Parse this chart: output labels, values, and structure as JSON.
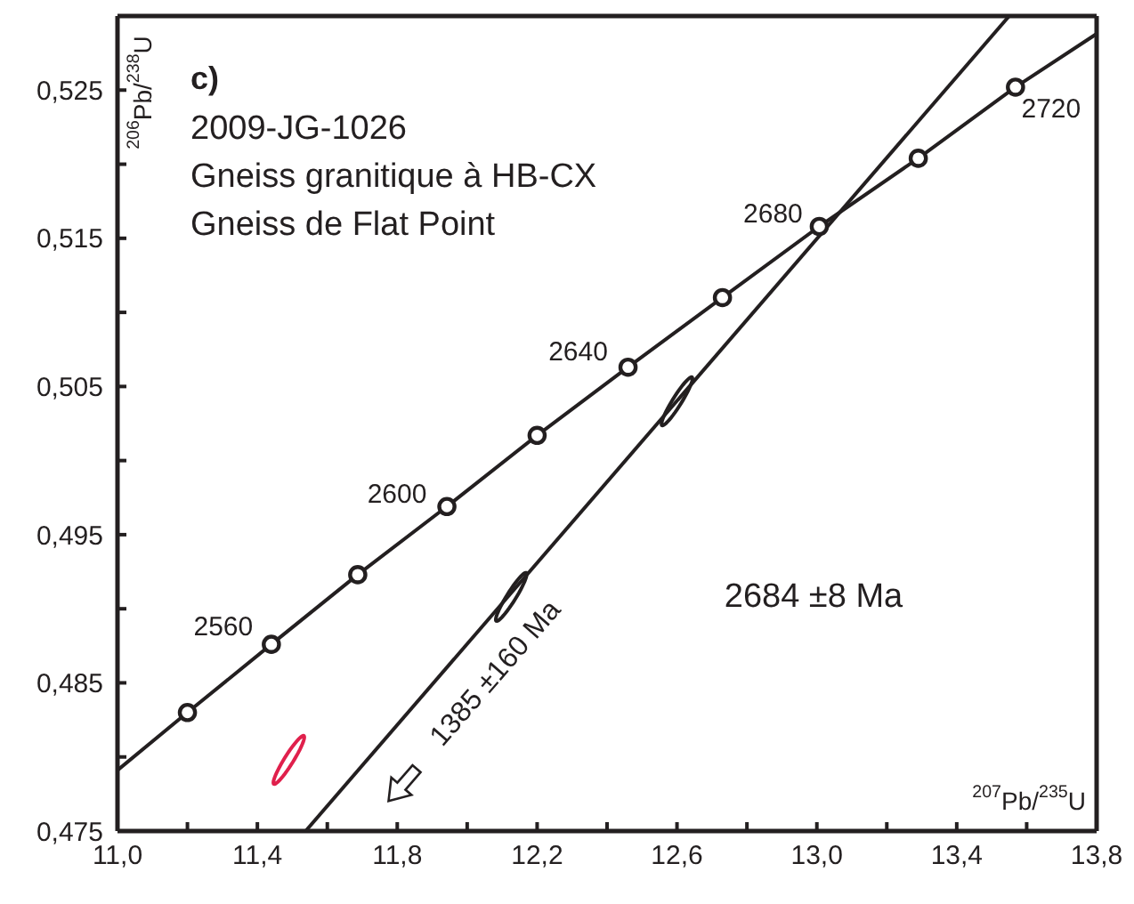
{
  "chart_data": {
    "type": "line",
    "title": "c)",
    "subtitle": "2009-JG-1026",
    "xlabel": "$^{207}$Pb/$^{235}$U",
    "ylabel": "$^{206}$Pb/$^{238}$U",
    "xlim": [
      11.0,
      13.8
    ],
    "ylim": [
      0.475,
      0.53
    ],
    "xticks": [
      {
        "value": 11.0,
        "label": "11,0"
      },
      {
        "value": 11.2,
        "label": null
      },
      {
        "value": 11.4,
        "label": "11,4"
      },
      {
        "value": 11.6,
        "label": null
      },
      {
        "value": 11.8,
        "label": "11,8"
      },
      {
        "value": 12.0,
        "label": null
      },
      {
        "value": 12.2,
        "label": "12,2"
      },
      {
        "value": 12.4,
        "label": null
      },
      {
        "value": 12.6,
        "label": "12,6"
      },
      {
        "value": 12.8,
        "label": null
      },
      {
        "value": 13.0,
        "label": "13,0"
      },
      {
        "value": 13.2,
        "label": null
      },
      {
        "value": 13.4,
        "label": "13,4"
      },
      {
        "value": 13.6,
        "label": null
      },
      {
        "value": 13.8,
        "label": "13,8"
      }
    ],
    "yticks": [
      {
        "value": 0.475,
        "label": "0,475"
      },
      {
        "value": 0.48,
        "label": null
      },
      {
        "value": 0.485,
        "label": "0,485"
      },
      {
        "value": 0.49,
        "label": null
      },
      {
        "value": 0.495,
        "label": "0,495"
      },
      {
        "value": 0.5,
        "label": null
      },
      {
        "value": 0.505,
        "label": "0,505"
      },
      {
        "value": 0.51,
        "label": null
      },
      {
        "value": 0.515,
        "label": "0,515"
      },
      {
        "value": 0.52,
        "label": null
      },
      {
        "value": 0.525,
        "label": "0,525"
      }
    ],
    "grid": false,
    "series": [
      {
        "color": "#231f20",
        "x": [
          11.0,
          11.2,
          11.44,
          11.687,
          11.942,
          12.2,
          12.46,
          12.73,
          13.007,
          13.29,
          13.568,
          13.8
        ],
        "values": [
          0.4791,
          0.483,
          0.4876,
          0.4923,
          0.4969,
          0.5017,
          0.5063,
          0.511,
          0.5158,
          0.5204,
          0.5252,
          0.5288
        ]
      },
      {
        "type": "scatter",
        "marker": "circle",
        "color": "#231f20",
        "x": [
          11.2,
          11.44,
          11.687,
          11.942,
          12.2,
          12.46,
          12.73,
          13.007,
          13.29,
          13.568
        ],
        "values": [
          0.483,
          0.4876,
          0.4923,
          0.4969,
          0.5017,
          0.5063,
          0.511,
          0.5158,
          0.5204,
          0.5252
        ]
      },
      {
        "color": "#231f20",
        "x": [
          11.538,
          13.55
        ],
        "values": [
          0.475,
          0.53
        ]
      },
      {
        "type": "scatter",
        "colors": [
          "#e0204c",
          "#231f20",
          "#231f20"
        ],
        "x": [
          11.49,
          12.126,
          12.6
        ],
        "values": [
          0.4798,
          0.4908,
          0.504
        ]
      }
    ],
    "annotations": [
      "Gneiss granitique à HB-CX",
      "Gneiss de Flat Point",
      "2684 ±8 Ma",
      "1385 ±160 Ma",
      {
        "text": "2560",
        "x": 11.44,
        "y": 0.4876
      },
      {
        "text": "2600",
        "x": 11.942,
        "y": 0.4969
      },
      {
        "text": "2640",
        "x": 12.46,
        "y": 0.5063
      },
      {
        "text": "2680",
        "x": 13.007,
        "y": 0.5158
      },
      {
        "text": "2720",
        "x": 13.568,
        "y": 0.5252
      }
    ]
  }
}
